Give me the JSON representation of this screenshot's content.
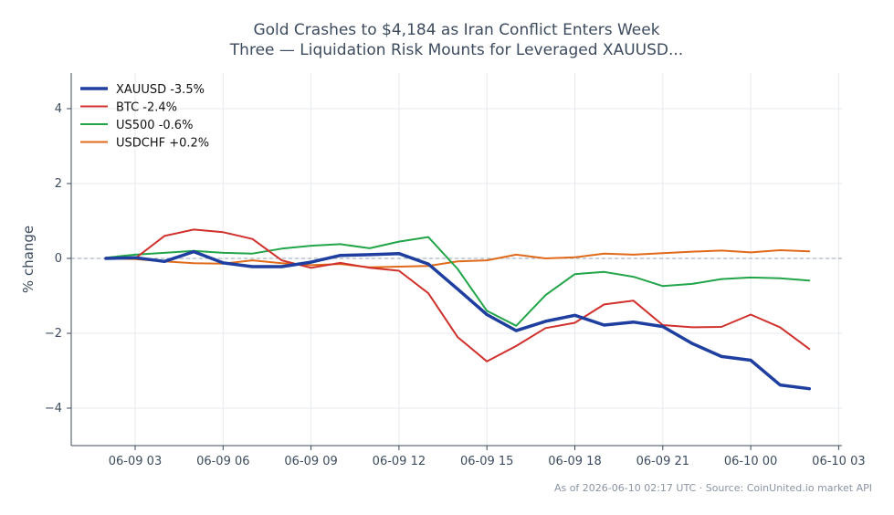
{
  "chart_data": {
    "type": "line",
    "title": "Gold Crashes to $4,184 as Iran Conflict Enters Week",
    "subtitle": "Three — Liquidation Risk Mounts for Leveraged XAUUSD...",
    "xlabel": "",
    "ylabel": "% change",
    "ylim": [
      -5,
      5
    ],
    "yticks": [
      {
        "v": 4,
        "label": "4"
      },
      {
        "v": 2,
        "label": "2"
      },
      {
        "v": 0,
        "label": "0"
      },
      {
        "v": -2,
        "label": "−2"
      },
      {
        "v": -4,
        "label": "−4"
      }
    ],
    "xlim": [
      1.0,
      27.0
    ],
    "xticks": [
      {
        "v": 3,
        "label": "06-09 03"
      },
      {
        "v": 6,
        "label": "06-09 06"
      },
      {
        "v": 9,
        "label": "06-09 09"
      },
      {
        "v": 12,
        "label": "06-09 12"
      },
      {
        "v": 15,
        "label": "06-09 15"
      },
      {
        "v": 18,
        "label": "06-09 18"
      },
      {
        "v": 21,
        "label": "06-09 21"
      },
      {
        "v": 24,
        "label": "06-10 00"
      },
      {
        "v": 27,
        "label": "06-10 03"
      }
    ],
    "x_unit": "hours since 06-09 00:00 UTC",
    "grid": true,
    "legend_position": "top-left",
    "baseline": 0,
    "x": [
      2,
      3,
      4,
      5,
      6,
      7,
      8,
      9,
      10,
      11,
      12,
      13,
      14,
      15,
      16,
      17,
      18,
      19,
      20,
      21,
      22,
      23,
      24,
      25,
      26
    ],
    "series": [
      {
        "name": "XAUUSD -3.5%",
        "color": "#1f3fa0",
        "width": 3.5,
        "values": [
          0.0,
          0.02,
          -0.08,
          0.18,
          -0.12,
          -0.22,
          -0.22,
          -0.1,
          0.08,
          0.1,
          0.13,
          -0.15,
          -0.82,
          -1.5,
          -1.93,
          -1.68,
          -1.52,
          -1.78,
          -1.7,
          -1.82,
          -2.27,
          -2.62,
          -2.72,
          -3.38,
          -3.48
        ]
      },
      {
        "name": "BTC -2.4%",
        "color": "#d0312d",
        "width": 2,
        "values": [
          0.0,
          0.0,
          0.6,
          0.77,
          0.7,
          0.52,
          -0.05,
          -0.25,
          -0.12,
          -0.25,
          -0.33,
          -0.93,
          -2.1,
          -2.75,
          -2.34,
          -1.86,
          -1.72,
          -1.23,
          -1.13,
          -1.78,
          -1.84,
          -1.83,
          -1.5,
          -1.84,
          -2.42
        ]
      },
      {
        "name": "US500 -0.6%",
        "color": "#22a548",
        "width": 2,
        "values": [
          0.02,
          0.1,
          0.15,
          0.2,
          0.15,
          0.13,
          0.26,
          0.34,
          0.38,
          0.27,
          0.45,
          0.57,
          -0.28,
          -1.4,
          -1.8,
          -0.98,
          -0.42,
          -0.36,
          -0.49,
          -0.74,
          -0.68,
          -0.55,
          -0.51,
          -0.53,
          -0.59
        ]
      },
      {
        "name": "USDCHF +0.2%",
        "color": "#e06a1a",
        "width": 2,
        "values": [
          0.0,
          -0.02,
          -0.08,
          -0.13,
          -0.14,
          -0.05,
          -0.13,
          -0.18,
          -0.15,
          -0.24,
          -0.22,
          -0.2,
          -0.08,
          -0.05,
          0.1,
          0.0,
          0.03,
          0.13,
          0.1,
          0.14,
          0.18,
          0.21,
          0.16,
          0.22,
          0.19
        ]
      }
    ]
  },
  "footer": "As of 2026-06-10 02:17 UTC · Source: CoinUnited.io market API"
}
